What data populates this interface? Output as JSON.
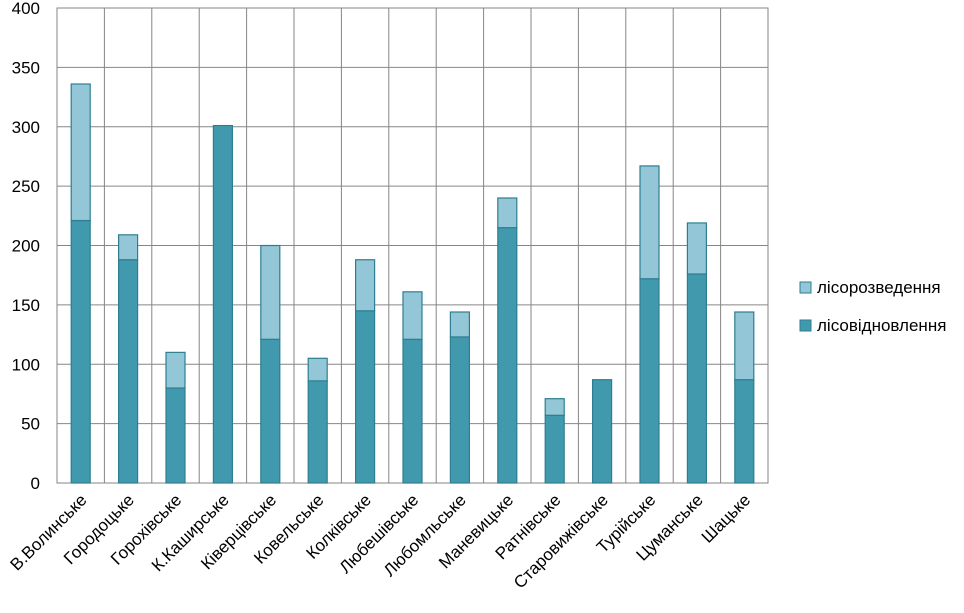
{
  "chart_data": {
    "type": "bar",
    "stacked": true,
    "categories": [
      "В.Волинське",
      "Городоцьке",
      "Горохівське",
      "К.Каширське",
      "Ківерцівське",
      "Ковельське",
      "Колківське",
      "Любешівське",
      "Любомльське",
      "Маневицьке",
      "Ратнівське",
      "Старовижівське",
      "Турійське",
      "Цуманське",
      "Шацьке"
    ],
    "series": [
      {
        "name": "лісовідновлення",
        "color": "#4199AE",
        "values": [
          221,
          188,
          80,
          301,
          121,
          86,
          145,
          121,
          123,
          215,
          57,
          87,
          172,
          176,
          87
        ]
      },
      {
        "name": "лісорозведення",
        "color": "#93C6D7",
        "values": [
          115,
          21,
          30,
          0,
          79,
          19,
          43,
          40,
          21,
          25,
          14,
          0,
          95,
          43,
          57
        ]
      }
    ],
    "ylim": [
      0,
      400
    ],
    "yticks": [
      "0",
      "50",
      "100",
      "150",
      "200",
      "250",
      "300",
      "350",
      "400"
    ],
    "grid": true,
    "legend_position": "right"
  }
}
